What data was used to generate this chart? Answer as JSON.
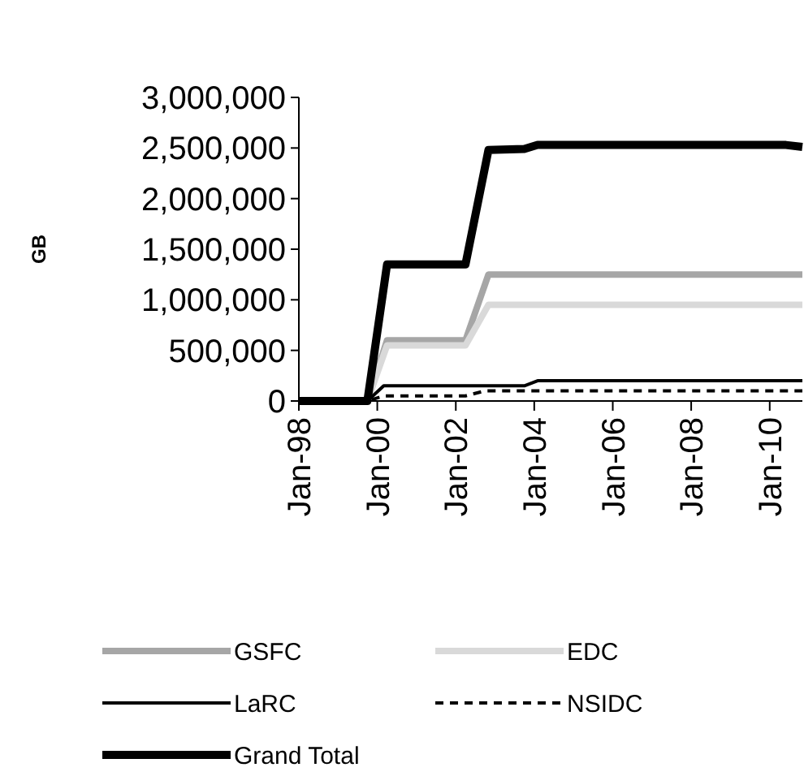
{
  "chart_data": {
    "type": "line",
    "ylabel": "GB",
    "xlim": [
      "1998-01",
      "2010-11"
    ],
    "xticks": [
      {
        "value": "1998-01",
        "label": "Jan-98"
      },
      {
        "value": "2000-01",
        "label": "Jan-00"
      },
      {
        "value": "2002-01",
        "label": "Jan-02"
      },
      {
        "value": "2004-01",
        "label": "Jan-04"
      },
      {
        "value": "2006-01",
        "label": "Jan-06"
      },
      {
        "value": "2008-01",
        "label": "Jan-08"
      },
      {
        "value": "2010-01",
        "label": "Jan-10"
      }
    ],
    "ylim": [
      0,
      3000000
    ],
    "yticks": [
      {
        "value": 0,
        "label": "0"
      },
      {
        "value": 500000,
        "label": "500,000"
      },
      {
        "value": 1000000,
        "label": "1,000,000"
      },
      {
        "value": 1500000,
        "label": "1,500,000"
      },
      {
        "value": 2000000,
        "label": "2,000,000"
      },
      {
        "value": 2500000,
        "label": "2,500,000"
      },
      {
        "value": 3000000,
        "label": "3,000,000"
      }
    ],
    "grid": false,
    "legend": "bottom",
    "marker": "none",
    "series": [
      {
        "name": "GSFC",
        "color": "#a6a6a6",
        "line_style": "solid",
        "x": [
          "1998-01",
          "1999-10",
          "2000-04",
          "2002-04",
          "2002-11",
          "2010-11"
        ],
        "values": [
          0,
          0,
          600000,
          600000,
          1250000,
          1250000
        ]
      },
      {
        "name": "EDC",
        "color": "#d9d9d9",
        "line_style": "solid",
        "x": [
          "1998-01",
          "1999-10",
          "2000-04",
          "2002-04",
          "2002-11",
          "2010-11"
        ],
        "values": [
          0,
          0,
          550000,
          550000,
          950000,
          950000
        ]
      },
      {
        "name": "LaRC",
        "color": "#000000",
        "line_style": "solid",
        "x": [
          "1998-01",
          "1999-10",
          "2000-03",
          "2003-10",
          "2004-02",
          "2010-11"
        ],
        "values": [
          0,
          0,
          150000,
          150000,
          200000,
          200000
        ]
      },
      {
        "name": "NSIDC",
        "color": "#000000",
        "line_style": "dashed",
        "x": [
          "1998-01",
          "1999-10",
          "2000-03",
          "2002-04",
          "2002-10",
          "2010-11"
        ],
        "values": [
          0,
          0,
          50000,
          50000,
          100000,
          100000
        ]
      },
      {
        "name": "Grand Total",
        "color": "#000000",
        "line_style": "solid",
        "x": [
          "1998-01",
          "1999-10",
          "2000-04",
          "2002-04",
          "2002-11",
          "2003-10",
          "2004-02",
          "2010-06",
          "2010-11"
        ],
        "values": [
          0,
          0,
          1350000,
          1350000,
          2480000,
          2490000,
          2530000,
          2530000,
          2510000
        ]
      }
    ]
  }
}
